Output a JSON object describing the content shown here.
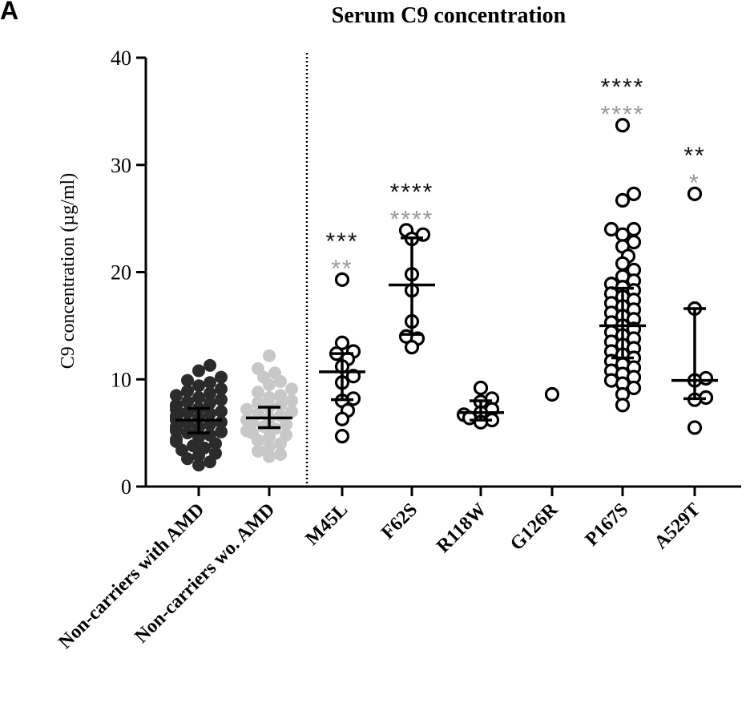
{
  "chart_data": {
    "type": "scatter",
    "panel_label": "A",
    "title": "Serum C9 concentration",
    "ylabel": "C9 concentration (µg/ml)",
    "xlabel": "",
    "ylim": [
      0,
      40
    ],
    "yticks": [
      0,
      10,
      20,
      30,
      40
    ],
    "grid": false,
    "colors": {
      "axis": "#000000",
      "dark": "#2b2b2b",
      "light": "#c8c8c8",
      "gray_star": "#9a9a9a",
      "open": "#000000"
    },
    "groups": [
      {
        "name": "Non-carriers with AMD",
        "style": "filled-dark",
        "center": 6.2,
        "lower": 5.0,
        "upper": 7.3,
        "median_bar": "mean-sem",
        "values": [
          11.3,
          10.8,
          10.2,
          9.9,
          9.7,
          9.4,
          9.1,
          8.9,
          8.7,
          8.5,
          8.3,
          8.1,
          7.9,
          7.8,
          7.6,
          7.5,
          7.3,
          7.2,
          7.0,
          6.9,
          6.8,
          6.6,
          6.5,
          6.4,
          6.3,
          6.2,
          6.0,
          5.9,
          5.8,
          5.6,
          5.5,
          5.4,
          5.2,
          5.1,
          5.0,
          4.8,
          4.6,
          4.4,
          4.2,
          4.0,
          3.8,
          3.6,
          3.4,
          3.1,
          2.9,
          2.6,
          2.3,
          2.0
        ],
        "stars_black": "",
        "stars_gray": ""
      },
      {
        "name": "Non-carriers wo. AMD",
        "style": "filled-light",
        "center": 6.4,
        "lower": 5.5,
        "upper": 7.4,
        "median_bar": "mean-sem",
        "values": [
          12.2,
          11.0,
          10.6,
          10.2,
          9.8,
          9.5,
          9.1,
          8.8,
          8.5,
          8.3,
          8.0,
          7.8,
          7.6,
          7.4,
          7.2,
          7.0,
          6.8,
          6.6,
          6.4,
          6.2,
          6.0,
          5.8,
          5.6,
          5.4,
          5.2,
          5.0,
          4.8,
          4.6,
          4.3,
          4.0,
          3.7,
          3.3,
          3.0,
          2.8
        ],
        "stars_black": "",
        "stars_gray": ""
      },
      {
        "name": "M45L",
        "style": "open",
        "center": 10.7,
        "lower": 8.1,
        "upper": 12.4,
        "median_bar": "median-iqr",
        "values": [
          19.3,
          13.4,
          12.6,
          12.4,
          11.9,
          11.2,
          10.3,
          9.7,
          8.2,
          8.0,
          7.1,
          6.3,
          4.7
        ],
        "stars_black": "***",
        "stars_gray": "**"
      },
      {
        "name": "F62S",
        "style": "open",
        "center": 18.8,
        "lower": 14.2,
        "upper": 23.2,
        "median_bar": "median-iqr",
        "values": [
          23.9,
          23.5,
          23.1,
          19.8,
          18.3,
          15.4,
          14.0,
          13.8,
          13.0
        ],
        "stars_black": "****",
        "stars_gray": "****"
      },
      {
        "name": "R118W",
        "style": "open",
        "center": 6.9,
        "lower": 6.2,
        "upper": 8.0,
        "median_bar": "median-iqr",
        "values": [
          9.2,
          8.2,
          7.9,
          7.2,
          6.9,
          6.7,
          6.4,
          6.2,
          6.0
        ],
        "stars_black": "",
        "stars_gray": ""
      },
      {
        "name": "G126R",
        "style": "open",
        "center": null,
        "lower": null,
        "upper": null,
        "median_bar": "none",
        "values": [
          8.6
        ],
        "stars_black": "",
        "stars_gray": ""
      },
      {
        "name": "P167S",
        "style": "open",
        "center": 15.0,
        "lower": 12.0,
        "upper": 18.5,
        "median_bar": "median-iqr",
        "values": [
          33.7,
          27.3,
          26.7,
          24.0,
          24.0,
          23.5,
          22.8,
          22.4,
          21.5,
          20.8,
          20.2,
          19.6,
          19.2,
          18.9,
          18.6,
          18.3,
          18.0,
          17.7,
          17.4,
          17.1,
          16.8,
          16.5,
          16.2,
          15.9,
          15.6,
          15.3,
          15.0,
          14.7,
          14.4,
          14.1,
          13.8,
          13.5,
          13.2,
          12.9,
          12.6,
          12.3,
          12.0,
          11.7,
          11.4,
          11.1,
          10.8,
          10.5,
          10.2,
          9.9,
          9.6,
          9.2,
          8.6,
          7.6
        ],
        "stars_black": "****",
        "stars_gray": "****"
      },
      {
        "name": "A529T",
        "style": "open",
        "center": 9.9,
        "lower": 8.2,
        "upper": 16.6,
        "median_bar": "median-iqr",
        "values": [
          27.3,
          16.6,
          10.1,
          9.9,
          8.3,
          8.1,
          5.5
        ],
        "stars_black": "**",
        "stars_gray": "*"
      }
    ],
    "divider_after_group": 1
  }
}
